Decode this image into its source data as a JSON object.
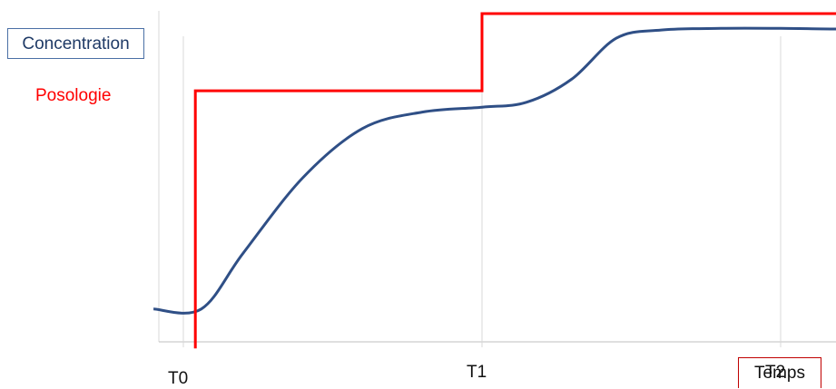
{
  "chart_data": {
    "type": "line",
    "xlabel": "Temps",
    "ticks": [
      {
        "label": "T0",
        "x": 0
      },
      {
        "label": "T1",
        "x": 1
      },
      {
        "label": "T2",
        "x": 2
      }
    ],
    "series": [
      {
        "name": "Concentration",
        "color": "#2f4f86",
        "style": "smooth",
        "points": [
          [
            -0.1,
            0.1
          ],
          [
            0.06,
            0.1
          ],
          [
            0.2,
            0.27
          ],
          [
            0.4,
            0.5
          ],
          [
            0.6,
            0.65
          ],
          [
            0.8,
            0.7
          ],
          [
            1.0,
            0.715
          ],
          [
            1.15,
            0.73
          ],
          [
            1.3,
            0.8
          ],
          [
            1.45,
            0.925
          ],
          [
            1.6,
            0.95
          ],
          [
            1.8,
            0.955
          ],
          [
            2.0,
            0.955
          ],
          [
            2.2,
            0.953
          ],
          [
            2.3,
            0.958
          ]
        ]
      },
      {
        "name": "Posologie",
        "color": "#ff0000",
        "style": "step",
        "points": [
          [
            0.04,
            -0.02
          ],
          [
            0.04,
            0.765
          ],
          [
            1.0,
            0.765
          ],
          [
            1.0,
            1.0
          ],
          [
            2.4,
            1.0
          ]
        ]
      }
    ],
    "legend": [
      {
        "label": "Concentration",
        "color": "#1f3a66",
        "boxed": true
      },
      {
        "label": "Posologie",
        "color": "#ff0000",
        "boxed": false
      }
    ],
    "grid": {
      "vertical_at_ticks": true,
      "horizontal": false
    },
    "xlim": [
      -0.1,
      2.4
    ],
    "ylim": [
      0,
      1
    ]
  }
}
